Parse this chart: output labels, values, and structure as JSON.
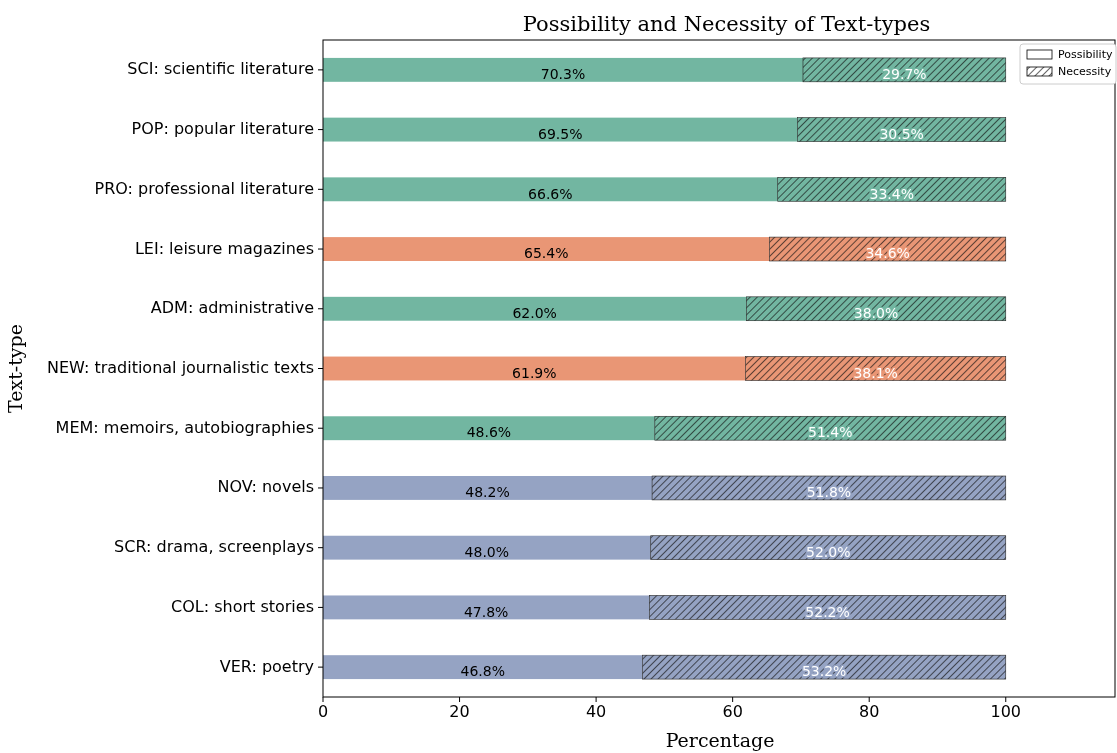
{
  "chart_data": {
    "type": "bar",
    "orientation": "horizontal",
    "stacked": true,
    "title": "Possibility and Necessity of Text-types",
    "xlabel": "Percentage",
    "ylabel": "Text-type",
    "categories": [
      "SCI: scientific literature",
      "POP: popular literature",
      "PRO: professional literature",
      "LEI: leisure magazines",
      "ADM: administrative",
      "NEW: traditional journalistic texts",
      "MEM: memoirs, autobiographies",
      "NOV: novels",
      "SCR: drama, screenplays",
      "COL: short stories",
      "VER: poetry"
    ],
    "series": [
      {
        "name": "Possibility",
        "values": [
          70.3,
          69.5,
          66.6,
          65.4,
          62.0,
          61.9,
          48.6,
          48.2,
          48.0,
          47.8,
          46.8
        ],
        "value_labels": [
          "70.3%",
          "69.5%",
          "66.6%",
          "65.4%",
          "62.0%",
          "61.9%",
          "48.6%",
          "48.2%",
          "48.0%",
          "47.8%",
          "46.8%"
        ],
        "colors": [
          "#72b6a1",
          "#72b6a1",
          "#72b6a1",
          "#e99675",
          "#72b6a1",
          "#e99675",
          "#72b6a1",
          "#95a3c3",
          "#95a3c3",
          "#95a3c3",
          "#95a3c3"
        ]
      },
      {
        "name": "Necessity",
        "values": [
          29.7,
          30.5,
          33.4,
          34.6,
          38.0,
          38.1,
          51.4,
          51.8,
          52.0,
          52.2,
          53.2
        ],
        "value_labels": [
          "29.7%",
          "30.5%",
          "33.4%",
          "34.6%",
          "38.0%",
          "38.1%",
          "51.4%",
          "51.8%",
          "52.0%",
          "52.2%",
          "53.2%"
        ],
        "colors": [
          "#72b6a1",
          "#72b6a1",
          "#72b6a1",
          "#e99675",
          "#72b6a1",
          "#e99675",
          "#72b6a1",
          "#95a3c3",
          "#95a3c3",
          "#95a3c3",
          "#95a3c3"
        ]
      }
    ],
    "xlim": [
      0,
      116
    ],
    "xticks": [
      0,
      20,
      40,
      60,
      80,
      100
    ],
    "legend": "top right",
    "grid": false
  }
}
